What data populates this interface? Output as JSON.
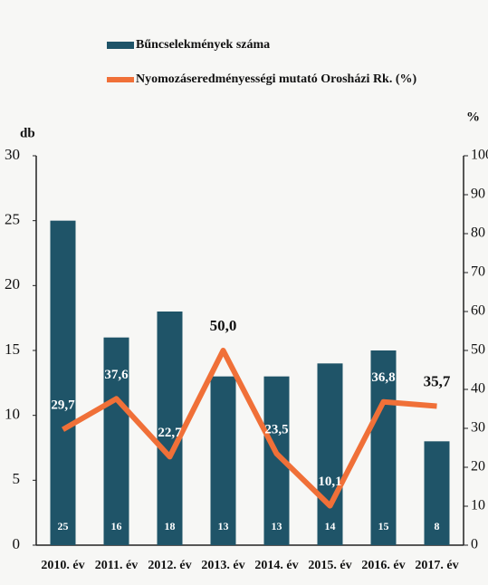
{
  "chart_data": {
    "type": "bar",
    "categories": [
      "2010. év",
      "2011. év",
      "2012. év",
      "2013. év",
      "2014. év",
      "2015. év",
      "2016. év",
      "2017. év"
    ],
    "ylabel": "db",
    "y2label": "%",
    "ylim": [
      0,
      30
    ],
    "yticks": [
      0,
      5,
      10,
      15,
      20,
      25,
      30
    ],
    "y2lim": [
      0,
      100
    ],
    "y2ticks": [
      0,
      10,
      20,
      30,
      40,
      50,
      60,
      70,
      80,
      90,
      100
    ],
    "series": [
      {
        "name": "Bűncselekmények száma",
        "type": "bar",
        "color": "#1f5468",
        "values": [
          25,
          16,
          18,
          13,
          13,
          14,
          15,
          8
        ]
      },
      {
        "name": "Nyomozáseredményességi mutató Orosházi Rk. (%)",
        "type": "line",
        "axis": "y2",
        "color": "#f07038",
        "values": [
          29.7,
          37.6,
          22.7,
          50.0,
          23.5,
          10.1,
          36.8,
          35.7
        ],
        "value_labels": [
          "29,7",
          "37,6",
          "22,7",
          "50,0",
          "23,5",
          "10,1",
          "36,8",
          "35,7"
        ]
      }
    ]
  }
}
